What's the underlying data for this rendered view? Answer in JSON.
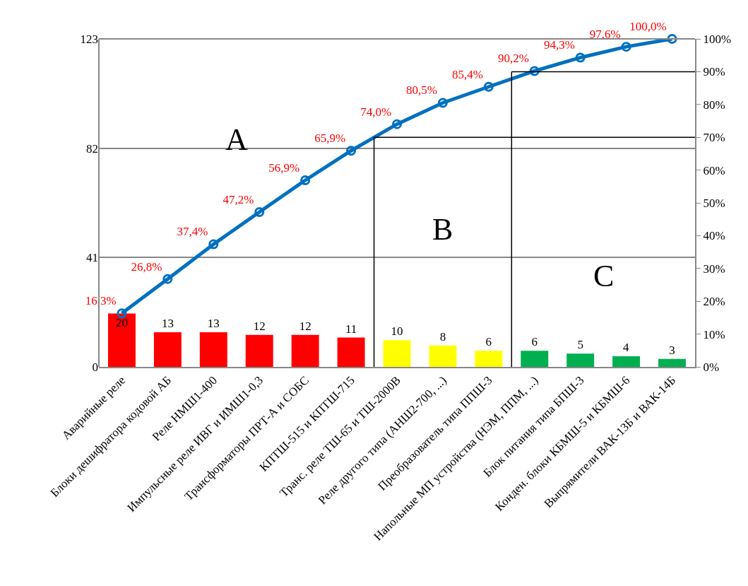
{
  "chart_data": {
    "type": "bar",
    "categories": [
      "Аварийные реле",
      "Блоки дешифратора кодовой АБ",
      "Реле НМШ1-400",
      "Импульсные реле ИВГ и ИМШ1-0,3",
      "Трансформаторы ПРТ-А и СОБС",
      "КПТШ-515 и КПТШ-715",
      "Транс. реле ТШ-65 и ТШ-2000В",
      "Реле другого типа (АНШ2-700, ...)",
      "Преобразователь типа ППШ-3",
      "Напольные МП устройства (НЭМ, ППМ, ...)",
      "Блок питания типа БПШ-3",
      "Конден. блоки КБМШ-5 и КБМШ-6",
      "Выпрямители ВАК-13Б и ВАК-14Б"
    ],
    "series": [
      {
        "colors": [
          "#ff0000",
          "#ff0000",
          "#ff0000",
          "#ff0000",
          "#ff0000",
          "#ff0000",
          "#ffff00",
          "#ffff00",
          "#ffff00",
          "#00b050",
          "#00b050",
          "#00b050",
          "#00b050"
        ],
        "values": [
          20,
          13,
          13,
          12,
          12,
          11,
          10,
          8,
          6,
          6,
          5,
          4,
          3
        ],
        "data_labels": true
      },
      {
        "type": "line",
        "axis": "y2",
        "color": "#0070c0",
        "marker": "circle",
        "values": [
          16.3,
          26.8,
          37.4,
          47.2,
          56.9,
          65.9,
          74.0,
          80.5,
          85.4,
          90.2,
          94.3,
          97.6,
          100.0
        ],
        "value_labels": [
          "16,3%",
          "26,8%",
          "37,4%",
          "47,2%",
          "56,9%",
          "65,9%",
          "74,0%",
          "80,5%",
          "85,4%",
          "90,2%",
          "94,3%",
          "97,6%",
          "100,0%"
        ]
      }
    ],
    "ylim": [
      0,
      123
    ],
    "yticks": [
      0,
      41,
      82,
      123
    ],
    "y2lim": [
      0,
      100
    ],
    "y2ticks": [
      {
        "value": 0,
        "label": "0%"
      },
      {
        "value": 10,
        "label": "10%"
      },
      {
        "value": 20,
        "label": "20%"
      },
      {
        "value": 30,
        "label": "30%"
      },
      {
        "value": 40,
        "label": "40%"
      },
      {
        "value": 50,
        "label": "50%"
      },
      {
        "value": 60,
        "label": "60%"
      },
      {
        "value": 70,
        "label": "70%"
      },
      {
        "value": 80,
        "label": "80%"
      },
      {
        "value": 90,
        "label": "90%"
      },
      {
        "value": 100,
        "label": "100%"
      }
    ],
    "ref_lines": [
      {
        "axis": "y2",
        "value": 70,
        "color": "#000000"
      },
      {
        "axis": "y2",
        "value": 90,
        "color": "#000000"
      }
    ],
    "annotations": [
      "A",
      "B",
      "C"
    ],
    "grid": "y",
    "legend": false
  }
}
